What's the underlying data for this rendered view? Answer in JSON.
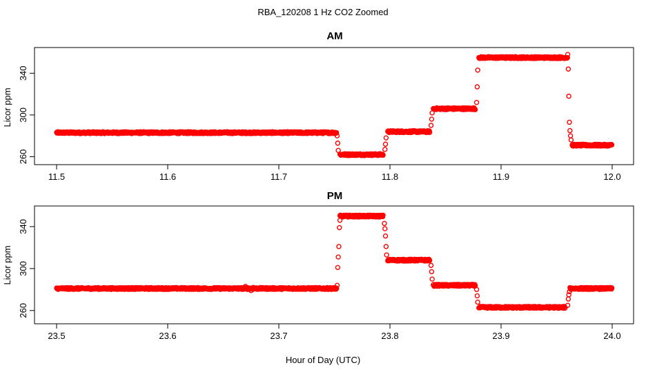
{
  "figure": {
    "title": "RBA_120208  1 Hz CO2 Zoomed",
    "xlabel": "Hour of Day (UTC)",
    "marker_color": "#ff0000"
  },
  "chart_data": [
    {
      "type": "scatter",
      "title": "AM",
      "ylabel": "Licor ppm",
      "xlim": [
        11.5,
        12.0
      ],
      "ylim": [
        255,
        362
      ],
      "xticks": [
        "11.5",
        "11.6",
        "11.7",
        "11.8",
        "11.9",
        "12.0"
      ],
      "yticks": [
        "260",
        "300",
        "340"
      ],
      "marker": "open-circle",
      "color": "#ff0000",
      "segments": [
        {
          "x_start": 11.5,
          "x_end": 11.752,
          "y": 283
        },
        {
          "x_start": 11.755,
          "x_end": 11.794,
          "y": 262
        },
        {
          "x_start": 11.798,
          "x_end": 11.836,
          "y": 284
        },
        {
          "x_start": 11.839,
          "x_end": 11.877,
          "y": 306
        },
        {
          "x_start": 11.88,
          "x_end": 11.96,
          "y": 355
        },
        {
          "x_start": 11.964,
          "x_end": 12.0,
          "y": 271
        }
      ],
      "transitions": [
        {
          "x": 11.7525,
          "y": 280
        },
        {
          "x": 11.753,
          "y": 273
        },
        {
          "x": 11.7535,
          "y": 266
        },
        {
          "x": 11.7955,
          "y": 267
        },
        {
          "x": 11.796,
          "y": 272
        },
        {
          "x": 11.7965,
          "y": 278
        },
        {
          "x": 11.837,
          "y": 290
        },
        {
          "x": 11.8375,
          "y": 296
        },
        {
          "x": 11.838,
          "y": 302
        },
        {
          "x": 11.878,
          "y": 312
        },
        {
          "x": 11.8785,
          "y": 327
        },
        {
          "x": 11.879,
          "y": 343
        },
        {
          "x": 11.96,
          "y": 358
        },
        {
          "x": 11.9605,
          "y": 344
        },
        {
          "x": 11.961,
          "y": 318
        },
        {
          "x": 11.9615,
          "y": 293
        },
        {
          "x": 11.962,
          "y": 285
        },
        {
          "x": 11.9625,
          "y": 280
        },
        {
          "x": 11.963,
          "y": 276
        }
      ]
    },
    {
      "type": "scatter",
      "title": "PM",
      "ylabel": "Licor ppm",
      "xlim": [
        23.5,
        24.0
      ],
      "ylim": [
        250,
        357
      ],
      "xticks": [
        "23.5",
        "23.6",
        "23.7",
        "23.8",
        "23.9",
        "24.0"
      ],
      "yticks": [
        "260",
        "300",
        "340"
      ],
      "marker": "open-circle",
      "color": "#ff0000",
      "segments": [
        {
          "x_start": 23.5,
          "x_end": 23.752,
          "y": 281
        },
        {
          "x_start": 23.755,
          "x_end": 23.794,
          "y": 350
        },
        {
          "x_start": 23.798,
          "x_end": 23.836,
          "y": 308
        },
        {
          "x_start": 23.839,
          "x_end": 23.877,
          "y": 284
        },
        {
          "x_start": 23.88,
          "x_end": 23.958,
          "y": 263
        },
        {
          "x_start": 23.962,
          "x_end": 24.0,
          "y": 281
        }
      ],
      "transitions": [
        {
          "x": 23.7525,
          "y": 284
        },
        {
          "x": 23.753,
          "y": 301
        },
        {
          "x": 23.7535,
          "y": 311
        },
        {
          "x": 23.754,
          "y": 321
        },
        {
          "x": 23.7545,
          "y": 339
        },
        {
          "x": 23.755,
          "y": 346
        },
        {
          "x": 23.795,
          "y": 343
        },
        {
          "x": 23.7955,
          "y": 338
        },
        {
          "x": 23.796,
          "y": 331
        },
        {
          "x": 23.7965,
          "y": 321
        },
        {
          "x": 23.797,
          "y": 313
        },
        {
          "x": 23.837,
          "y": 303
        },
        {
          "x": 23.8375,
          "y": 297
        },
        {
          "x": 23.838,
          "y": 290
        },
        {
          "x": 23.878,
          "y": 280
        },
        {
          "x": 23.8785,
          "y": 274
        },
        {
          "x": 23.879,
          "y": 268
        },
        {
          "x": 23.96,
          "y": 265
        },
        {
          "x": 23.9605,
          "y": 271
        },
        {
          "x": 23.961,
          "y": 275
        },
        {
          "x": 23.9615,
          "y": 278
        }
      ],
      "outliers": [
        {
          "x": 23.67,
          "y": 283
        },
        {
          "x": 23.677,
          "y": 282
        },
        {
          "x": 23.675,
          "y": 279
        }
      ]
    }
  ]
}
